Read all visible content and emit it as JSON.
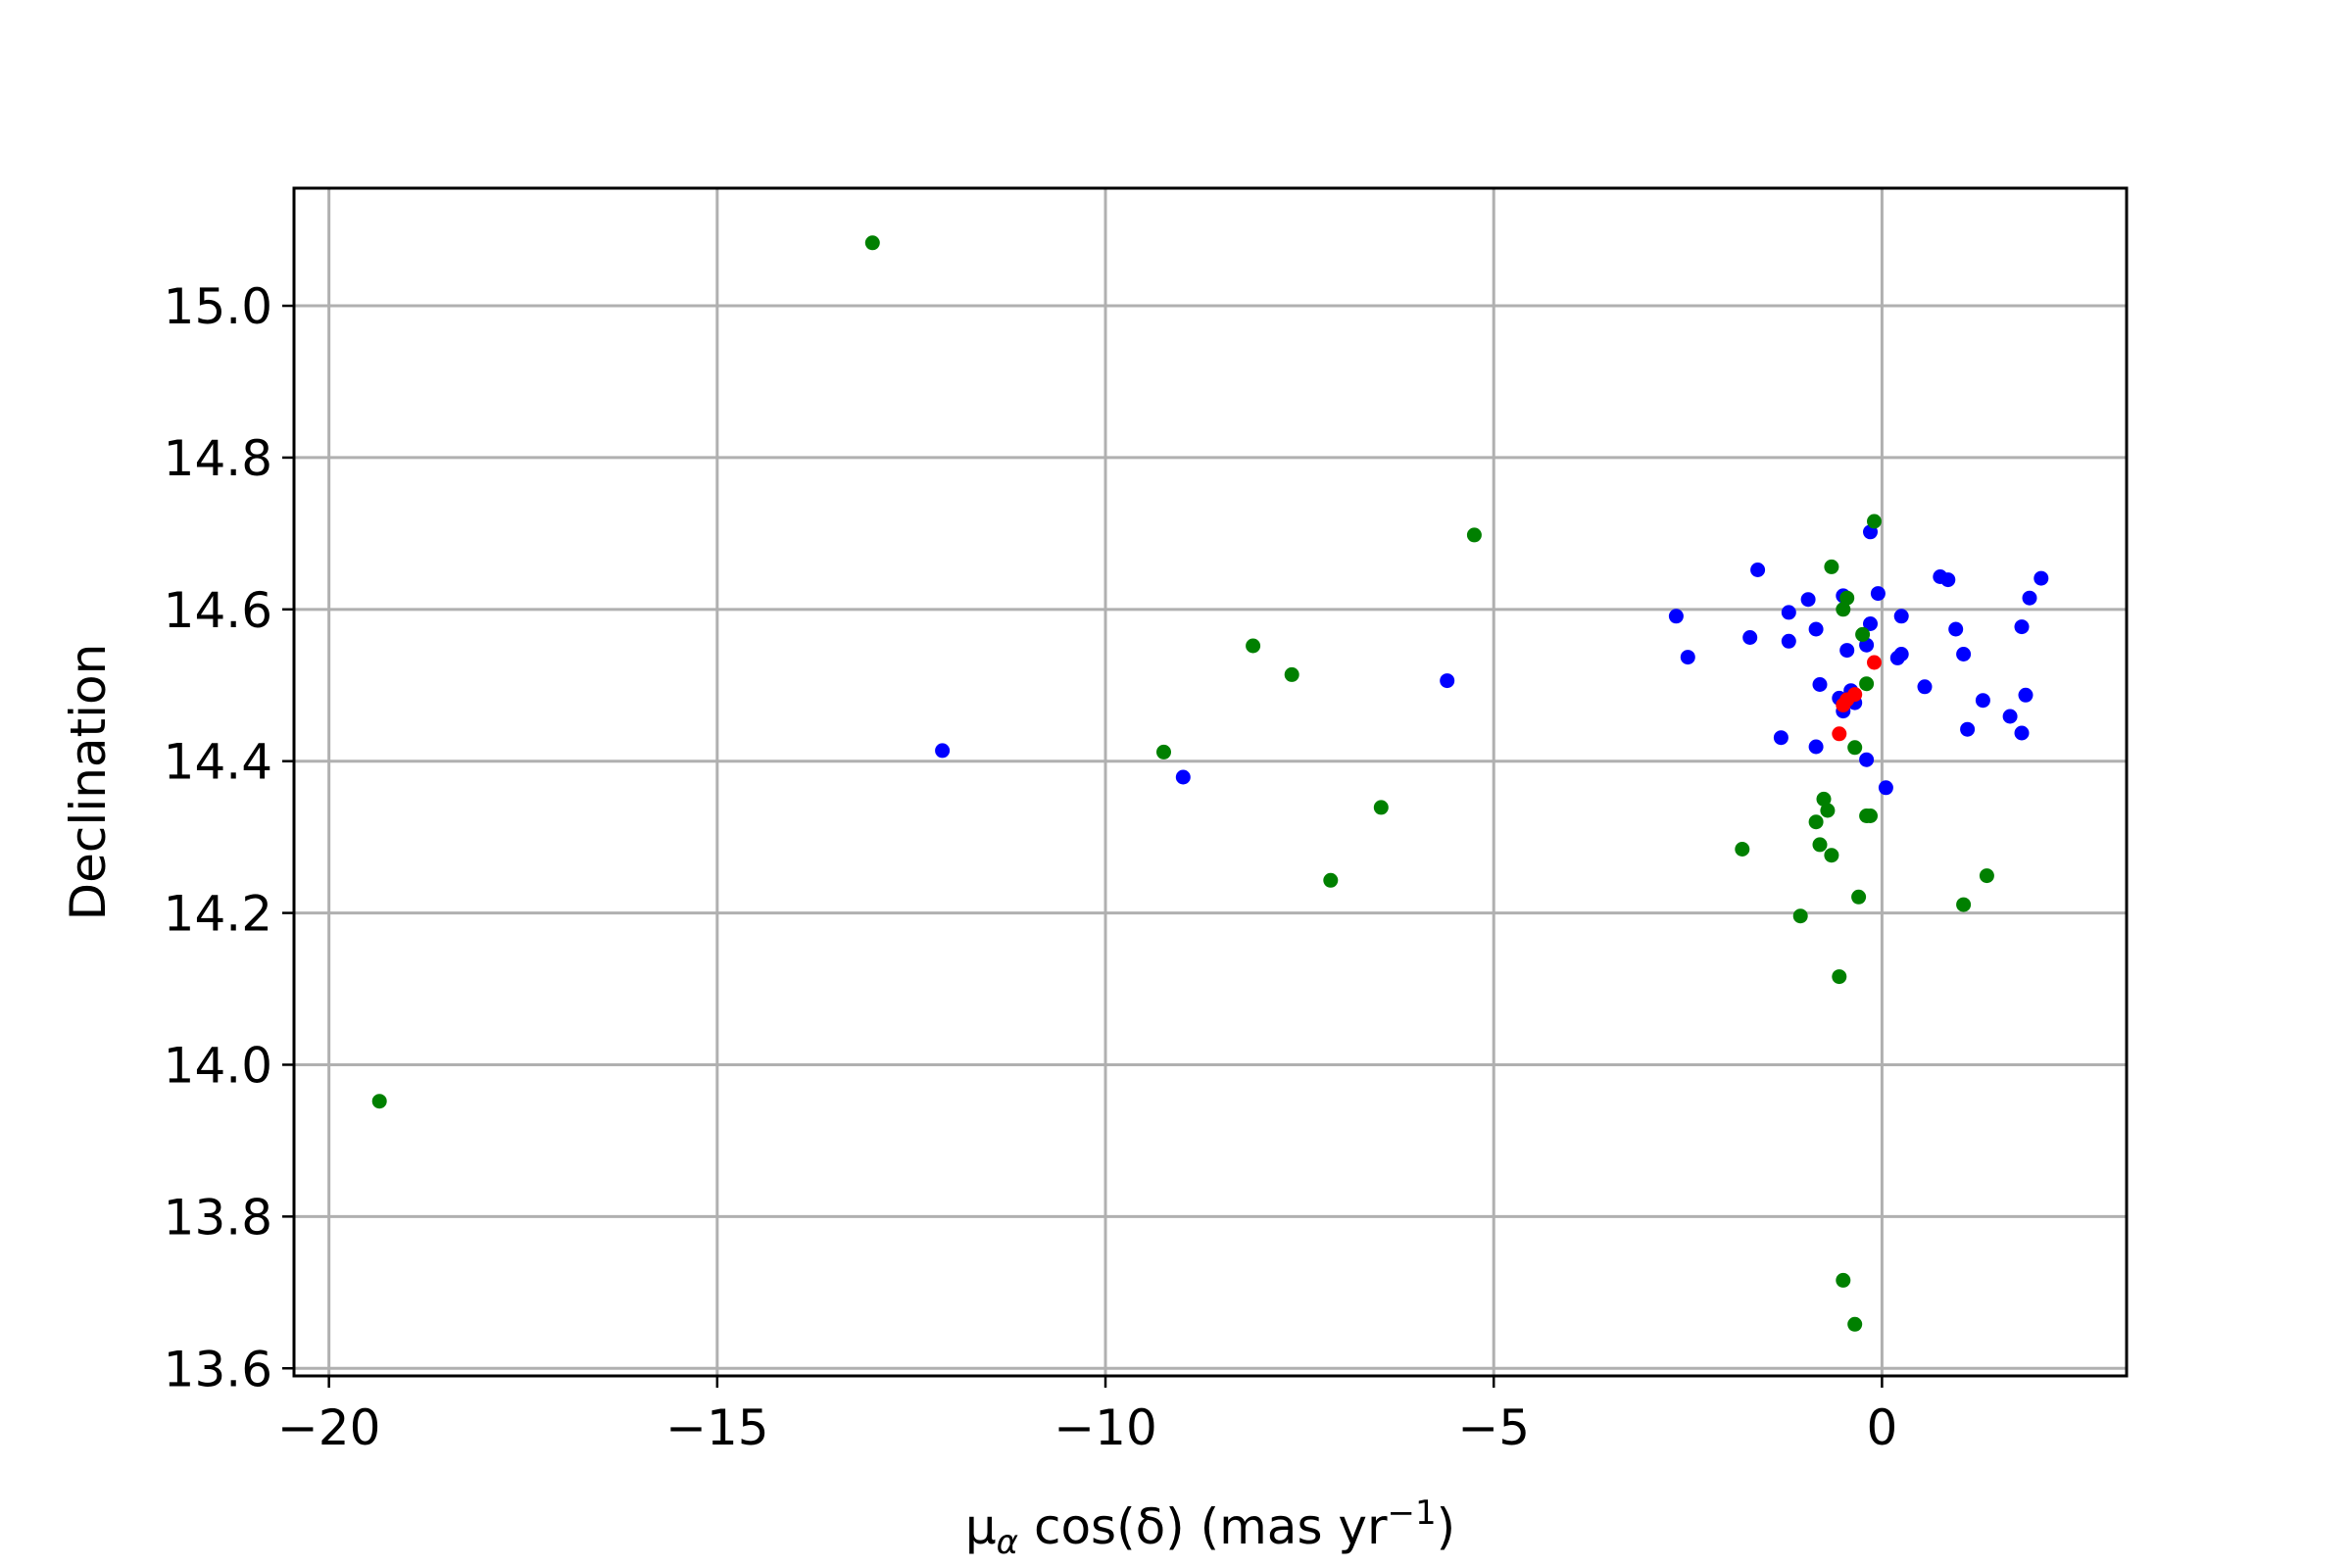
{
  "chart_data": {
    "type": "scatter",
    "title": "",
    "xlabel": "μα cos(δ) (mas yr−1)",
    "xlabel_parts": {
      "mu": "μ",
      "sub": "α",
      "rest": " cos(δ) (mas yr",
      "sup": "−1",
      "close": ")"
    },
    "ylabel": "Declination",
    "xlim": [
      -20.45,
      3.15
    ],
    "ylim": [
      13.59,
      15.155
    ],
    "xticks": [
      -20,
      -15,
      -10,
      -5,
      0
    ],
    "xtick_labels": [
      "−20",
      "−15",
      "−10",
      "−5",
      "0"
    ],
    "yticks": [
      13.6,
      13.8,
      14.0,
      14.2,
      14.4,
      14.6,
      14.8,
      15.0
    ],
    "ytick_labels": [
      "13.6",
      "13.8",
      "14.0",
      "14.2",
      "14.4",
      "14.6",
      "14.8",
      "15.0"
    ],
    "grid": true,
    "legend": "none",
    "series": [
      {
        "color": "#0000ff",
        "points": [
          [
            -12.1,
            14.414
          ],
          [
            -9.0,
            14.379
          ],
          [
            -5.6,
            14.506
          ],
          [
            -2.65,
            14.591
          ],
          [
            -2.5,
            14.537
          ],
          [
            -1.6,
            14.652
          ],
          [
            -1.7,
            14.563
          ],
          [
            -1.2,
            14.596
          ],
          [
            -1.2,
            14.558
          ],
          [
            -1.3,
            14.431
          ],
          [
            -0.95,
            14.613
          ],
          [
            -0.85,
            14.574
          ],
          [
            -0.8,
            14.501
          ],
          [
            -0.85,
            14.419
          ],
          [
            -0.5,
            14.618
          ],
          [
            -0.45,
            14.546
          ],
          [
            -0.55,
            14.483
          ],
          [
            -0.5,
            14.466
          ],
          [
            -0.4,
            14.493
          ],
          [
            -0.35,
            14.477
          ],
          [
            -0.2,
            14.553
          ],
          [
            -0.2,
            14.402
          ],
          [
            -0.15,
            14.702
          ],
          [
            -0.15,
            14.581
          ],
          [
            -0.05,
            14.621
          ],
          [
            0.05,
            14.365
          ],
          [
            0.25,
            14.591
          ],
          [
            0.2,
            14.536
          ],
          [
            0.25,
            14.541
          ],
          [
            0.55,
            14.498
          ],
          [
            0.75,
            14.643
          ],
          [
            0.85,
            14.639
          ],
          [
            0.95,
            14.574
          ],
          [
            1.05,
            14.541
          ],
          [
            1.1,
            14.442
          ],
          [
            1.3,
            14.48
          ],
          [
            1.65,
            14.459
          ],
          [
            1.8,
            14.577
          ],
          [
            1.8,
            14.437
          ],
          [
            1.85,
            14.487
          ],
          [
            1.9,
            14.615
          ],
          [
            2.05,
            14.641
          ]
        ]
      },
      {
        "color": "#008000",
        "points": [
          [
            -19.35,
            13.952
          ],
          [
            -13.0,
            15.083
          ],
          [
            -9.25,
            14.412
          ],
          [
            -8.1,
            14.552
          ],
          [
            -7.6,
            14.514
          ],
          [
            -7.1,
            14.243
          ],
          [
            -6.45,
            14.339
          ],
          [
            -5.25,
            14.698
          ],
          [
            -1.8,
            14.284
          ],
          [
            -1.05,
            14.196
          ],
          [
            -0.85,
            14.32
          ],
          [
            -0.8,
            14.29
          ],
          [
            -0.75,
            14.35
          ],
          [
            -0.7,
            14.335
          ],
          [
            -0.65,
            14.276
          ],
          [
            -0.65,
            14.656
          ],
          [
            -0.55,
            14.116
          ],
          [
            -0.5,
            14.6
          ],
          [
            -0.45,
            14.615
          ],
          [
            -0.5,
            13.716
          ],
          [
            -0.35,
            14.418
          ],
          [
            -0.3,
            14.221
          ],
          [
            -0.35,
            13.658
          ],
          [
            -0.25,
            14.567
          ],
          [
            -0.2,
            14.502
          ],
          [
            -0.2,
            14.328
          ],
          [
            -0.15,
            14.328
          ],
          [
            -0.1,
            14.716
          ],
          [
            1.05,
            14.211
          ],
          [
            1.35,
            14.249
          ]
        ]
      },
      {
        "color": "#ff0000",
        "points": [
          [
            -0.1,
            14.53
          ],
          [
            -0.35,
            14.488
          ],
          [
            -0.45,
            14.481
          ],
          [
            -0.5,
            14.474
          ],
          [
            -0.55,
            14.436
          ]
        ]
      }
    ]
  }
}
